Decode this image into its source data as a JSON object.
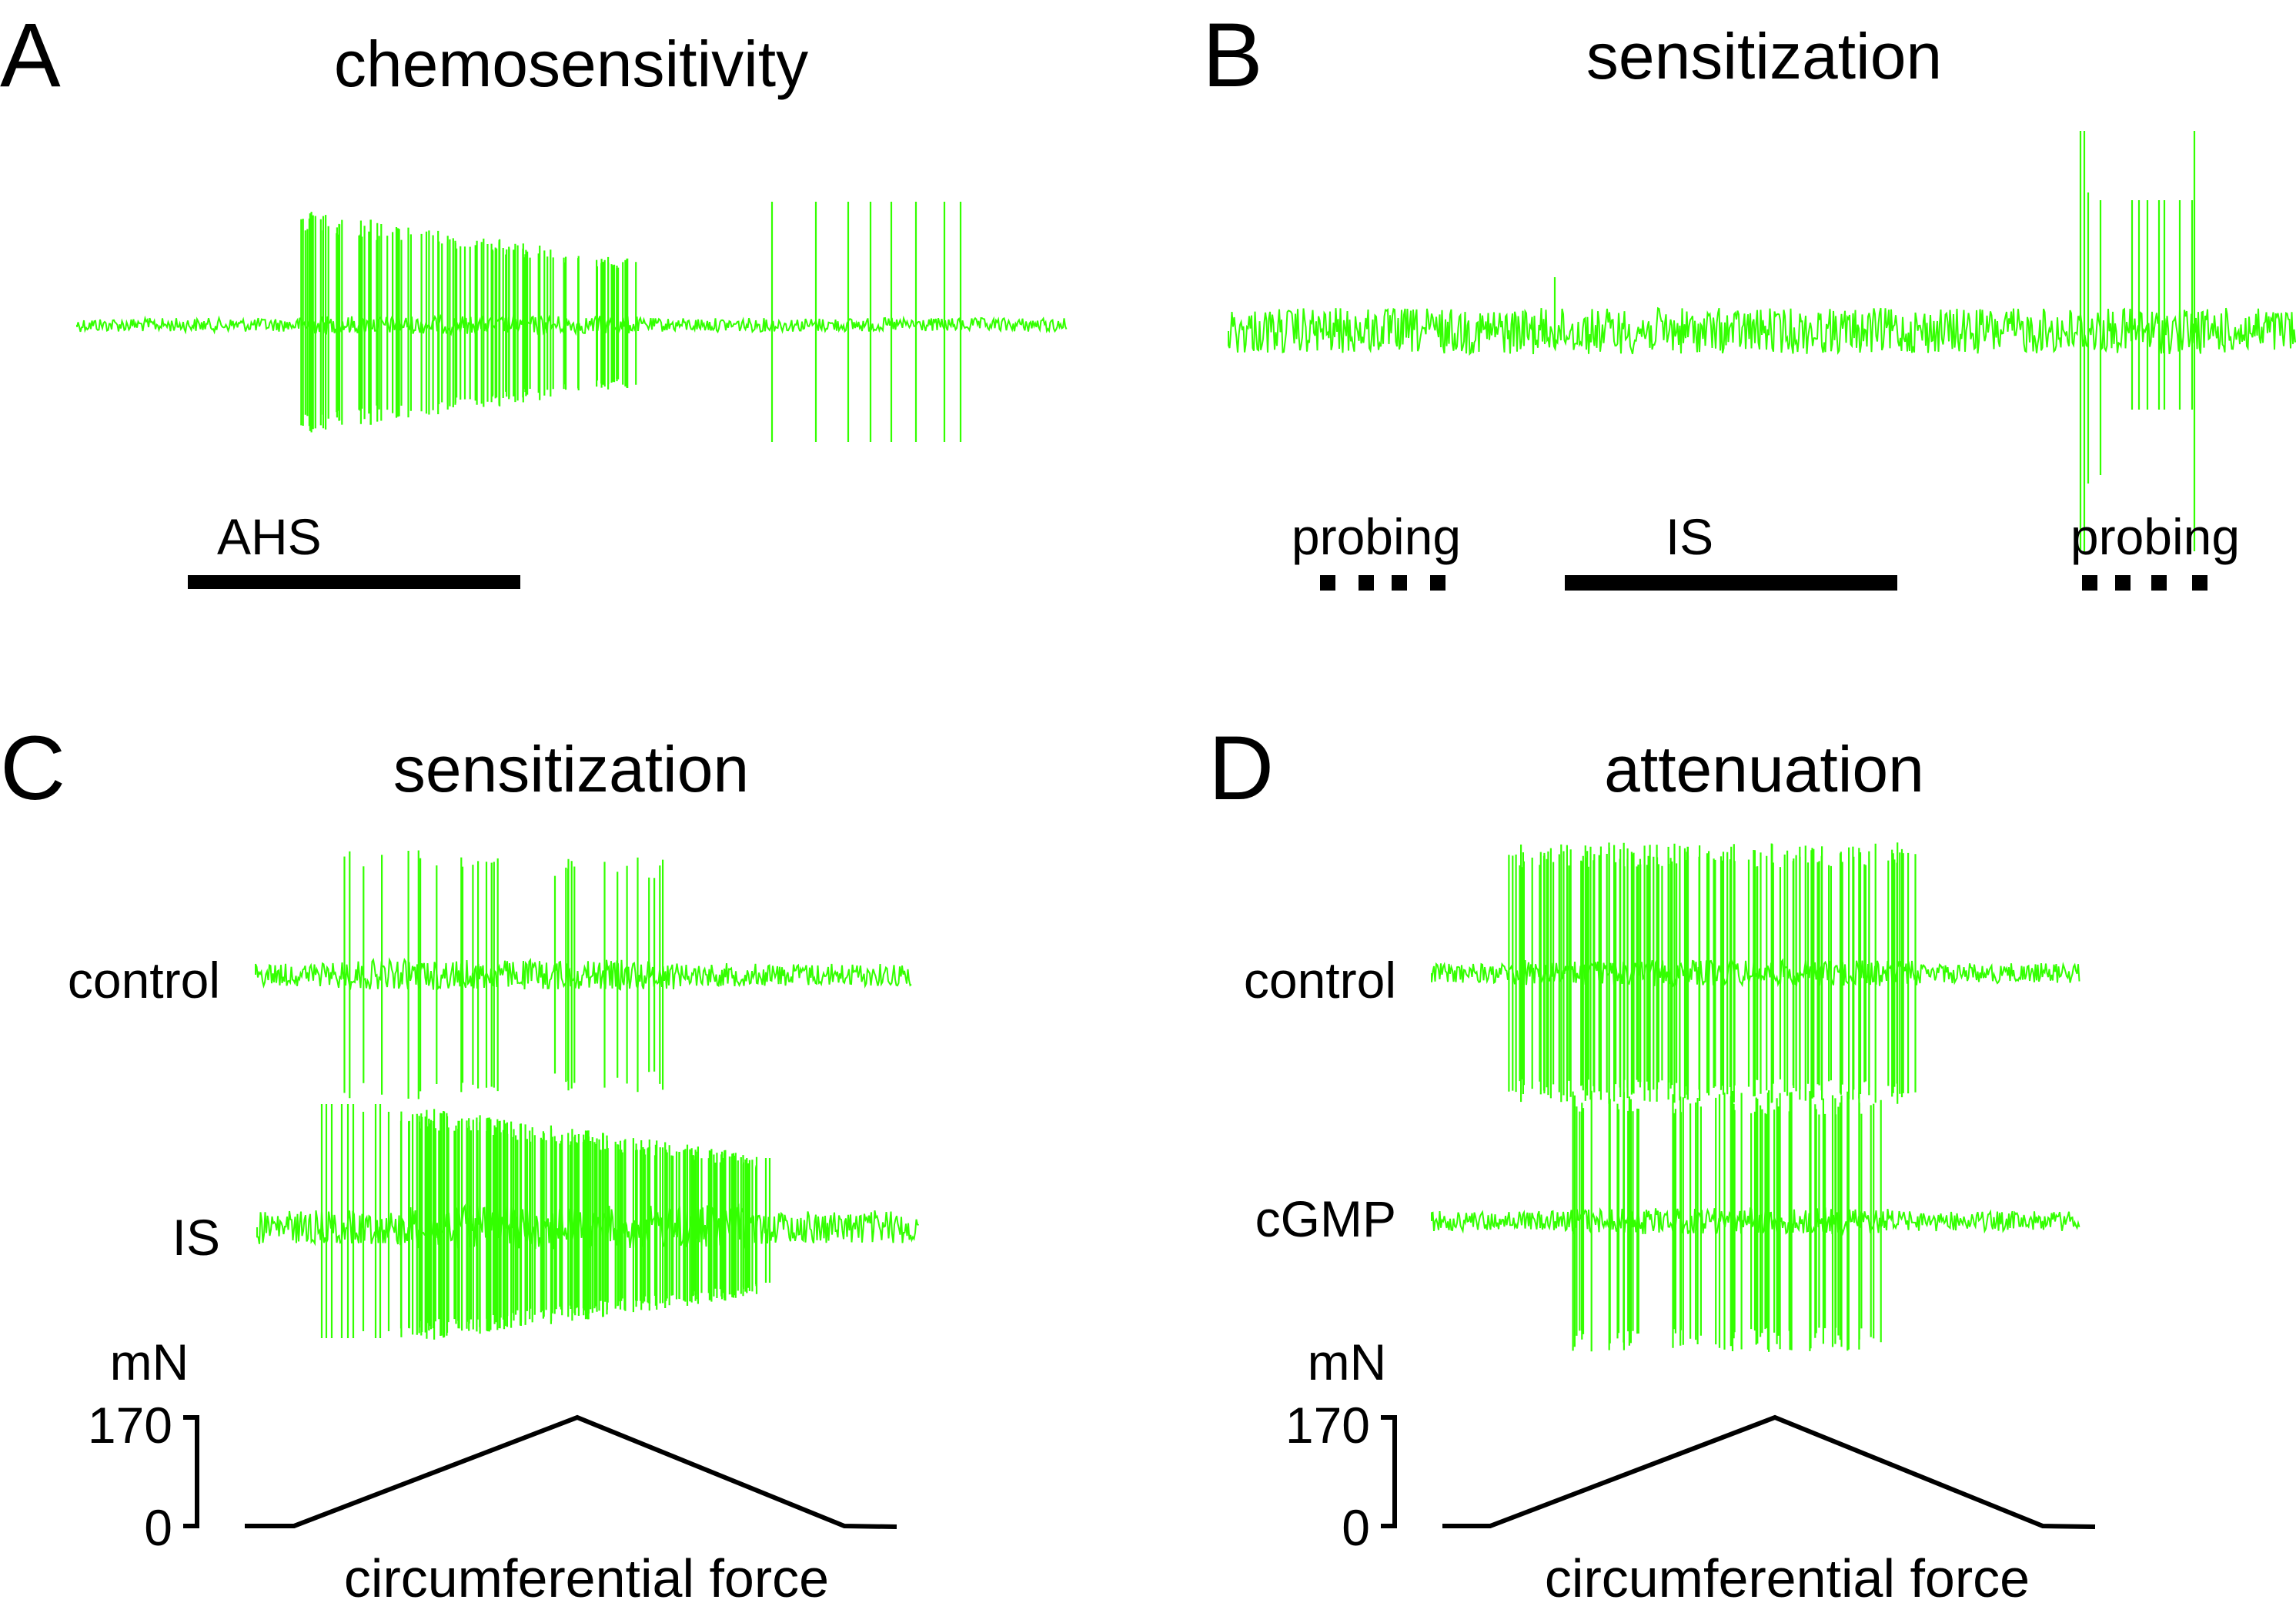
{
  "colors": {
    "trace": "#33ff00",
    "ink": "#000000",
    "background": "#ffffff"
  },
  "panels": {
    "A": {
      "letter": "A",
      "title": "chemosensitivity",
      "stimulus_label": "AHS"
    },
    "B": {
      "letter": "B",
      "title": "sensitization",
      "probe_label_1": "probing",
      "stimulus_label": "IS",
      "probe_label_2": "probing"
    },
    "C": {
      "letter": "C",
      "title": "sensitization",
      "trace_label_1": "control",
      "trace_label_2": "IS",
      "unit": "mN",
      "tick_high": "170",
      "tick_low": "0",
      "force_caption": "circumferential force"
    },
    "D": {
      "letter": "D",
      "title": "attenuation",
      "trace_label_1": "control",
      "trace_label_2": "cGMP",
      "unit": "mN",
      "tick_high": "170",
      "tick_low": "0",
      "force_caption": "circumferential force"
    }
  }
}
